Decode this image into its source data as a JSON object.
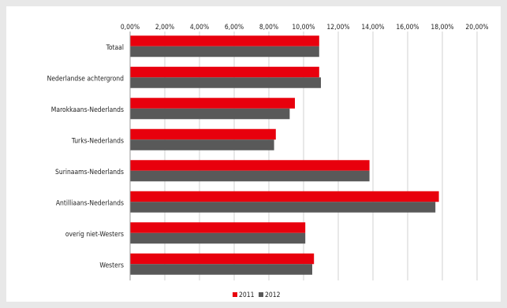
{
  "chart_data": {
    "type": "bar",
    "orientation": "horizontal",
    "categories": [
      "Totaal",
      "Nederlandse achtergrond",
      "Marokkaans-Nederlands",
      "Turks-Nederlands",
      "Surinaams-Nederlands",
      "Antilliaans-Nederlands",
      "overig niet-Westers",
      "Westers"
    ],
    "series": [
      {
        "name": "2011",
        "color": "#e8000d",
        "values": [
          10.9,
          10.9,
          9.5,
          8.4,
          13.8,
          17.8,
          10.1,
          10.6
        ]
      },
      {
        "name": "2012",
        "color": "#595959",
        "values": [
          10.9,
          11.0,
          9.2,
          8.3,
          13.8,
          17.6,
          10.1,
          10.5
        ]
      }
    ],
    "xlim": [
      0,
      20
    ],
    "x_ticks": [
      "0,00%",
      "2,00%",
      "4,00%",
      "6,00%",
      "8,00%",
      "10,00%",
      "12,00%",
      "14,00%",
      "16,00%",
      "18,00%",
      "20,00%"
    ],
    "x_axis_position": "top",
    "grid": true,
    "legend_position": "bottom-center"
  }
}
